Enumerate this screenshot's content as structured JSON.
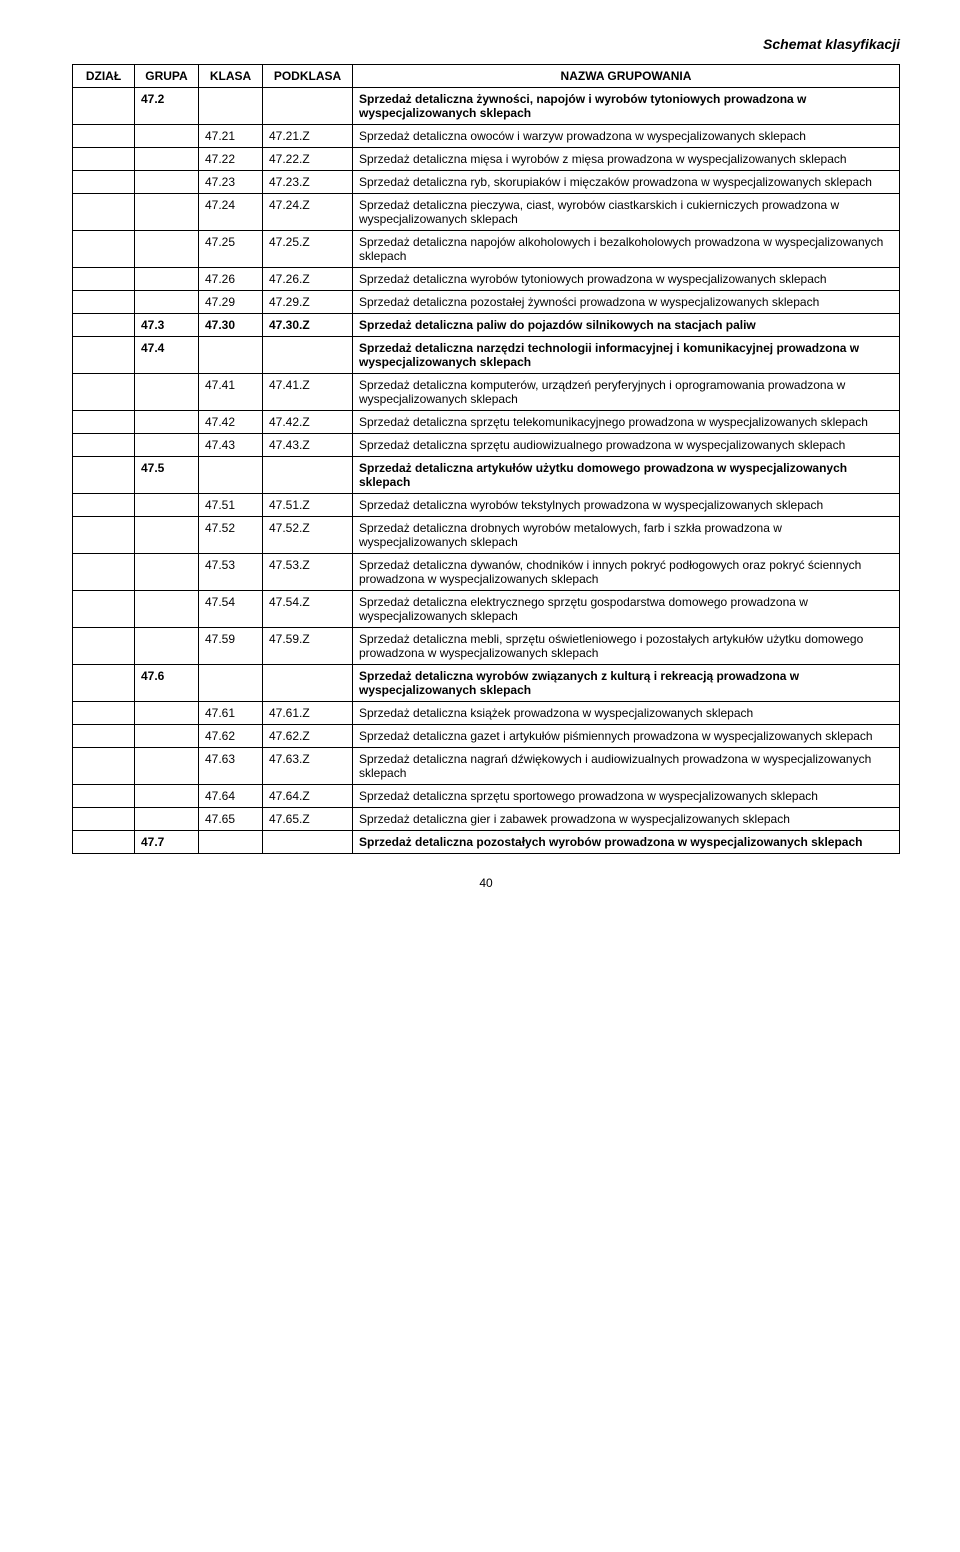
{
  "meta": {
    "schema_title": "Schemat klasyfikacji",
    "page_number": "40"
  },
  "table": {
    "headers": [
      "DZIAŁ",
      "GRUPA",
      "KLASA",
      "PODKLASA",
      "NAZWA GRUPOWANIA"
    ],
    "rows": [
      {
        "dzial": "",
        "grupa": "47.2",
        "klasa": "",
        "podklasa": "",
        "nazwa": "Sprzedaż detaliczna żywności, napojów i wyrobów tytoniowych prowadzona w wyspecjalizowanych sklepach",
        "bold": true
      },
      {
        "dzial": "",
        "grupa": "",
        "klasa": "47.21",
        "podklasa": "47.21.Z",
        "nazwa": "Sprzedaż detaliczna owoców i warzyw prowadzona w wyspecjalizowanych sklepach",
        "bold": false
      },
      {
        "dzial": "",
        "grupa": "",
        "klasa": "47.22",
        "podklasa": "47.22.Z",
        "nazwa": "Sprzedaż detaliczna mięsa i wyrobów z mięsa prowadzona w wyspecjalizowanych sklepach",
        "bold": false
      },
      {
        "dzial": "",
        "grupa": "",
        "klasa": "47.23",
        "podklasa": "47.23.Z",
        "nazwa": "Sprzedaż detaliczna ryb, skorupiaków i mięczaków prowadzona w wyspecjalizowanych sklepach",
        "bold": false
      },
      {
        "dzial": "",
        "grupa": "",
        "klasa": "47.24",
        "podklasa": "47.24.Z",
        "nazwa": "Sprzedaż detaliczna pieczywa, ciast, wyrobów ciastkarskich i cukierniczych prowadzona w wyspecjalizowanych sklepach",
        "bold": false
      },
      {
        "dzial": "",
        "grupa": "",
        "klasa": "47.25",
        "podklasa": "47.25.Z",
        "nazwa": "Sprzedaż detaliczna napojów alkoholowych i bezalkoholowych prowadzona w wyspecjalizowanych sklepach",
        "bold": false
      },
      {
        "dzial": "",
        "grupa": "",
        "klasa": "47.26",
        "podklasa": "47.26.Z",
        "nazwa": "Sprzedaż detaliczna wyrobów tytoniowych prowadzona w wyspecjalizowanych sklepach",
        "bold": false
      },
      {
        "dzial": "",
        "grupa": "",
        "klasa": "47.29",
        "podklasa": "47.29.Z",
        "nazwa": "Sprzedaż detaliczna pozostałej żywności prowadzona w wyspecjalizowanych sklepach",
        "bold": false
      },
      {
        "dzial": "",
        "grupa": "47.3",
        "klasa": "47.30",
        "podklasa": "47.30.Z",
        "nazwa": "Sprzedaż detaliczna paliw do pojazdów silnikowych na stacjach paliw",
        "bold": true
      },
      {
        "dzial": "",
        "grupa": "47.4",
        "klasa": "",
        "podklasa": "",
        "nazwa": "Sprzedaż detaliczna narzędzi technologii informacyjnej i komunikacyjnej prowadzona w wyspecjalizowanych sklepach",
        "bold": true
      },
      {
        "dzial": "",
        "grupa": "",
        "klasa": "47.41",
        "podklasa": "47.41.Z",
        "nazwa": "Sprzedaż detaliczna komputerów, urządzeń peryferyjnych i oprogramowania prowadzona w wyspecjalizowanych sklepach",
        "bold": false
      },
      {
        "dzial": "",
        "grupa": "",
        "klasa": "47.42",
        "podklasa": "47.42.Z",
        "nazwa": "Sprzedaż detaliczna sprzętu telekomunikacyjnego prowadzona w wyspecjalizowanych sklepach",
        "bold": false
      },
      {
        "dzial": "",
        "grupa": "",
        "klasa": "47.43",
        "podklasa": "47.43.Z",
        "nazwa": "Sprzedaż detaliczna sprzętu audiowizualnego prowadzona w wyspecjalizowanych sklepach",
        "bold": false
      },
      {
        "dzial": "",
        "grupa": "47.5",
        "klasa": "",
        "podklasa": "",
        "nazwa": "Sprzedaż detaliczna artykułów użytku domowego prowadzona w wyspecjalizowanych sklepach",
        "bold": true
      },
      {
        "dzial": "",
        "grupa": "",
        "klasa": "47.51",
        "podklasa": "47.51.Z",
        "nazwa": "Sprzedaż detaliczna wyrobów tekstylnych prowadzona w wyspecjalizowanych sklepach",
        "bold": false
      },
      {
        "dzial": "",
        "grupa": "",
        "klasa": "47.52",
        "podklasa": "47.52.Z",
        "nazwa": "Sprzedaż detaliczna drobnych wyrobów metalowych, farb i szkła prowadzona w wyspecjalizowanych sklepach",
        "bold": false
      },
      {
        "dzial": "",
        "grupa": "",
        "klasa": "47.53",
        "podklasa": "47.53.Z",
        "nazwa": "Sprzedaż detaliczna dywanów, chodników i innych pokryć podłogowych oraz pokryć ściennych prowadzona w wyspecjalizowanych sklepach",
        "bold": false
      },
      {
        "dzial": "",
        "grupa": "",
        "klasa": "47.54",
        "podklasa": "47.54.Z",
        "nazwa": "Sprzedaż detaliczna elektrycznego sprzętu gospodarstwa domowego prowadzona w wyspecjalizowanych sklepach",
        "bold": false
      },
      {
        "dzial": "",
        "grupa": "",
        "klasa": "47.59",
        "podklasa": "47.59.Z",
        "nazwa": "Sprzedaż detaliczna mebli, sprzętu oświetleniowego i pozostałych artykułów użytku domowego prowadzona w wyspecjalizowanych sklepach",
        "bold": false
      },
      {
        "dzial": "",
        "grupa": "47.6",
        "klasa": "",
        "podklasa": "",
        "nazwa": "Sprzedaż detaliczna wyrobów związanych z kulturą i rekreacją prowadzona w wyspecjalizowanych sklepach",
        "bold": true
      },
      {
        "dzial": "",
        "grupa": "",
        "klasa": "47.61",
        "podklasa": "47.61.Z",
        "nazwa": "Sprzedaż detaliczna książek prowadzona w wyspecjalizowanych sklepach",
        "bold": false
      },
      {
        "dzial": "",
        "grupa": "",
        "klasa": "47.62",
        "podklasa": "47.62.Z",
        "nazwa": "Sprzedaż detaliczna gazet i artykułów piśmiennych prowadzona w wyspecjalizowanych sklepach",
        "bold": false
      },
      {
        "dzial": "",
        "grupa": "",
        "klasa": "47.63",
        "podklasa": "47.63.Z",
        "nazwa": "Sprzedaż detaliczna nagrań dźwiękowych i audiowizualnych prowadzona w wyspecjalizowanych sklepach",
        "bold": false
      },
      {
        "dzial": "",
        "grupa": "",
        "klasa": "47.64",
        "podklasa": "47.64.Z",
        "nazwa": "Sprzedaż detaliczna sprzętu sportowego prowadzona w wyspecjalizowanych sklepach",
        "bold": false
      },
      {
        "dzial": "",
        "grupa": "",
        "klasa": "47.65",
        "podklasa": "47.65.Z",
        "nazwa": "Sprzedaż detaliczna gier i zabawek prowadzona w wyspecjalizowanych sklepach",
        "bold": false
      },
      {
        "dzial": "",
        "grupa": "47.7",
        "klasa": "",
        "podklasa": "",
        "nazwa": "Sprzedaż detaliczna pozostałych wyrobów prowadzona w wyspecjalizowanych sklepach",
        "bold": true
      }
    ]
  }
}
